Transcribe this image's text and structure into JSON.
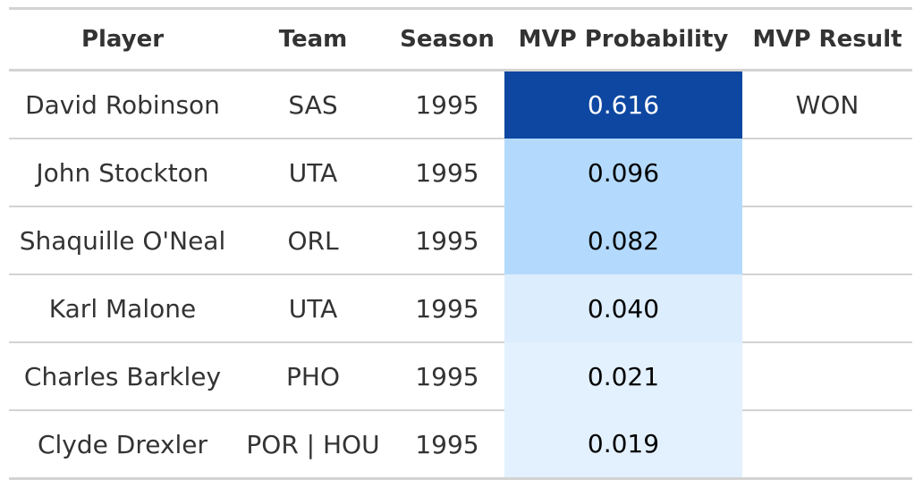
{
  "table": {
    "headers": [
      "Player",
      "Team",
      "Season",
      "MVP Probability",
      "MVP Result"
    ],
    "rows": [
      {
        "player": "David Robinson",
        "team": "SAS",
        "season": "1995",
        "prob": "0.616",
        "result": "WON",
        "bg": "#0d47a1",
        "fg": "#ffffff"
      },
      {
        "player": "John Stockton",
        "team": "UTA",
        "season": "1995",
        "prob": "0.096",
        "result": "",
        "bg": "#b3dafc",
        "fg": "#000000"
      },
      {
        "player": "Shaquille O'Neal",
        "team": "ORL",
        "season": "1995",
        "prob": "0.082",
        "result": "",
        "bg": "#b3dafc",
        "fg": "#000000"
      },
      {
        "player": "Karl Malone",
        "team": "UTA",
        "season": "1995",
        "prob": "0.040",
        "result": "",
        "bg": "#dcedfd",
        "fg": "#000000"
      },
      {
        "player": "Charles Barkley",
        "team": "PHO",
        "season": "1995",
        "prob": "0.021",
        "result": "",
        "bg": "#e3f1fe",
        "fg": "#000000"
      },
      {
        "player": "Clyde Drexler",
        "team": "POR | HOU",
        "season": "1995",
        "prob": "0.019",
        "result": "",
        "bg": "#e3f1fe",
        "fg": "#000000"
      }
    ]
  }
}
